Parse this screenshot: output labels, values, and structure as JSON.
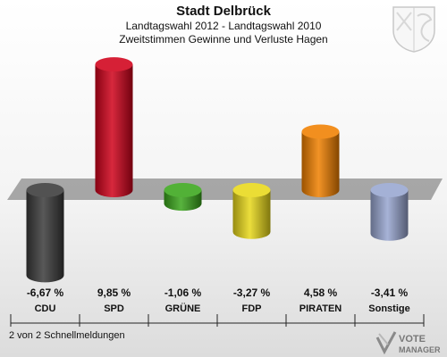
{
  "header": {
    "title": "Stadt Delbrück",
    "subtitle1": "Landtagswahl 2012 - Landtagswahl 2010",
    "subtitle2": "Zweitstimmen Gewinne und Verluste Hagen"
  },
  "chart_data": {
    "type": "bar",
    "categories": [
      "CDU",
      "SPD",
      "GRÜNE",
      "FDP",
      "PIRATEN",
      "Sonstige"
    ],
    "values": [
      -6.67,
      9.85,
      -1.06,
      -3.27,
      4.58,
      -3.41
    ],
    "value_labels": [
      "-6,67 %",
      "9,85 %",
      "-1,06 %",
      "-3,27 %",
      "4,58 %",
      "-3,41 %"
    ],
    "colors": [
      "#3a3a3a",
      "#d0021b",
      "#3aa61c",
      "#e8d81a",
      "#f08000",
      "#98a6d0"
    ],
    "title": "",
    "xlabel": "",
    "ylabel": ""
  },
  "footer": {
    "note": "2 von 2 Schnellmeldungen",
    "logo_line1": "VOTE",
    "logo_line2": "MANAGER"
  }
}
